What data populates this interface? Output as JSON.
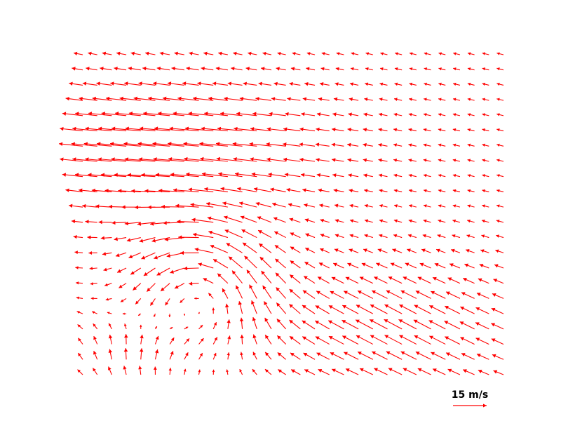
{
  "chart_data": {
    "type": "quiver",
    "title": "",
    "xlabel": "",
    "ylabel": "",
    "grid": false,
    "color": "#ff0000",
    "rows": 22,
    "cols": 30,
    "x_range": [
      0,
      29
    ],
    "y_range": [
      0,
      21
    ],
    "key": {
      "label": "15 m/s",
      "magnitude": 15,
      "placement": "bottom-right"
    },
    "flow_features": [
      {
        "name": "westerly-jet",
        "cx": 6,
        "cy": 15,
        "sx": 7,
        "sy": 3,
        "u": -22,
        "v": 1
      },
      {
        "name": "cyclonic-vortex",
        "cx": 8.5,
        "cy": 5.5,
        "radius": 3.2,
        "strength": 9
      },
      {
        "name": "southeast-trade",
        "cx": 22,
        "cy": 3,
        "sx": 6,
        "sy": 3,
        "u": -10,
        "v": 7
      }
    ]
  }
}
